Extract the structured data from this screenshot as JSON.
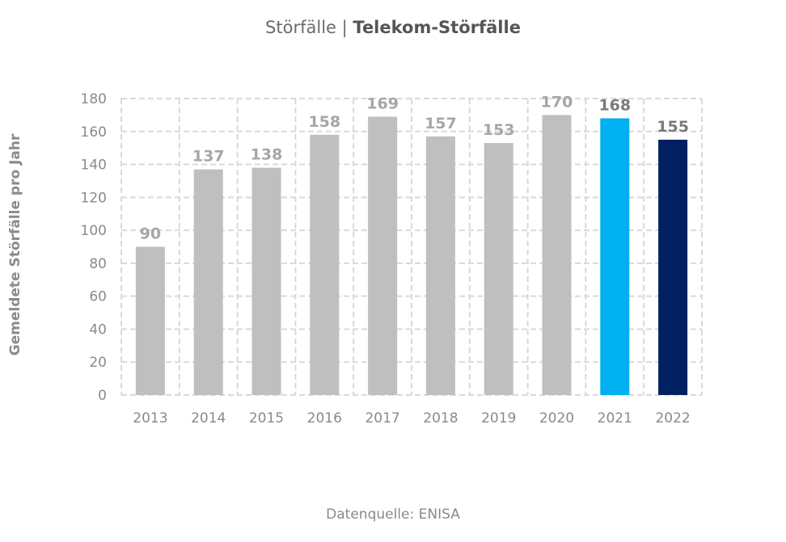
{
  "title": {
    "prefix": "Störfälle",
    "separator": "|",
    "main": "Telekom-Störfälle"
  },
  "source": "Datenquelle: ENISA",
  "colors": {
    "default_bar": "#bfbfbf",
    "highlight_2021": "#00b0f0",
    "highlight_2022": "#002060",
    "grid": "#d9d9d9",
    "axis_text": "#8a8a8a",
    "label_default": "#a6a6a6",
    "label_highlight": "#7a7a7a"
  },
  "chart_data": {
    "type": "bar",
    "title": "Störfälle | Telekom-Störfälle",
    "ylabel": "Gemeldete Störfälle pro Jahr",
    "xlabel": "",
    "categories": [
      "2013",
      "2014",
      "2015",
      "2016",
      "2017",
      "2018",
      "2019",
      "2020",
      "2021",
      "2022"
    ],
    "values": [
      90,
      137,
      138,
      158,
      169,
      157,
      153,
      170,
      168,
      155
    ],
    "ylim": [
      0,
      180
    ],
    "yticks": [
      0,
      20,
      40,
      60,
      80,
      100,
      120,
      140,
      160,
      180
    ],
    "grid": true,
    "grid_style": "dashed",
    "highlighted": {
      "2021": "#00b0f0",
      "2022": "#002060"
    }
  }
}
